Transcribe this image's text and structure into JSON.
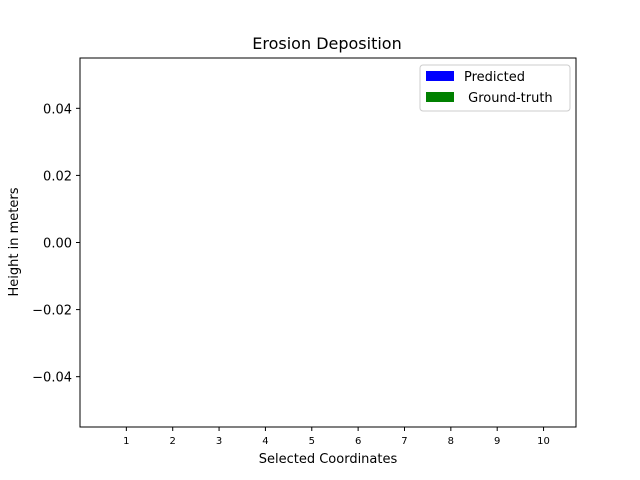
{
  "chart_data": {
    "type": "bar",
    "title": "Erosion Deposition",
    "xlabel": "Selected Coordinates",
    "ylabel": "Height in meters",
    "categories": [
      "1",
      "2",
      "3",
      "4",
      "5",
      "6",
      "7",
      "8",
      "9",
      "10"
    ],
    "ylim": [
      -0.055,
      0.055
    ],
    "y_ticks": [
      "0.04",
      "0.02",
      "0.00",
      "−0.02",
      "−0.04"
    ],
    "y_tick_values": [
      0.04,
      0.02,
      0.0,
      -0.02,
      -0.04
    ],
    "series": [
      {
        "name": "Predicted",
        "color": "#0000ff",
        "values": [
          0,
          0,
          0,
          0,
          0,
          0,
          0,
          0,
          0,
          0
        ]
      },
      {
        "name": " Ground-truth",
        "color": "#008000",
        "values": [
          0,
          0,
          0,
          0,
          0,
          0,
          0,
          0,
          0,
          0
        ]
      }
    ],
    "legend_position": "upper right",
    "grid": false
  }
}
